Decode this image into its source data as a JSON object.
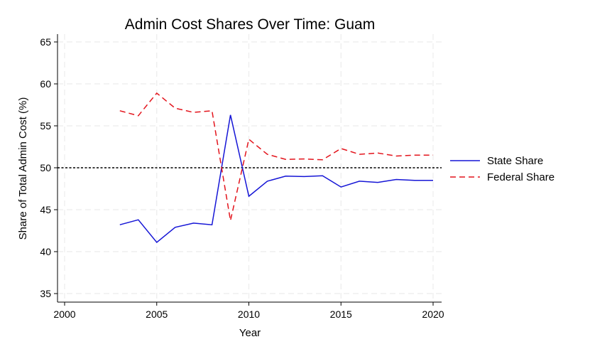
{
  "chart_data": {
    "type": "line",
    "title": "Admin Cost Shares Over Time: Guam",
    "xlabel": "Year",
    "ylabel": "Share of Total Admin Cost (%)",
    "xlim": [
      2000,
      2020
    ],
    "ylim": [
      35,
      65
    ],
    "xticks": [
      2000,
      2005,
      2010,
      2015,
      2020
    ],
    "yticks": [
      35,
      40,
      45,
      50,
      55,
      60,
      65
    ],
    "grid": true,
    "legend_position": "right",
    "reference_line": {
      "y": 50,
      "style": "dotted",
      "color": "#000000"
    },
    "series": [
      {
        "name": "State Share",
        "color": "#1515d6",
        "style": "solid",
        "x": [
          2003,
          2004,
          2005,
          2006,
          2007,
          2008,
          2009,
          2010,
          2011,
          2012,
          2013,
          2014,
          2015,
          2016,
          2017,
          2018,
          2019,
          2020
        ],
        "y": [
          43.2,
          43.8,
          41.1,
          42.9,
          43.4,
          43.2,
          56.3,
          46.6,
          48.4,
          49.0,
          48.95,
          49.05,
          47.7,
          48.4,
          48.25,
          48.6,
          48.5,
          48.5
        ]
      },
      {
        "name": "Federal Share",
        "color": "#e3141c",
        "style": "dashed",
        "x": [
          2003,
          2004,
          2005,
          2006,
          2007,
          2008,
          2009,
          2010,
          2011,
          2012,
          2013,
          2014,
          2015,
          2016,
          2017,
          2018,
          2019,
          2020
        ],
        "y": [
          56.8,
          56.2,
          58.9,
          57.1,
          56.6,
          56.8,
          43.7,
          53.4,
          51.6,
          51.0,
          51.05,
          50.95,
          52.3,
          51.6,
          51.75,
          51.4,
          51.5,
          51.5
        ]
      }
    ]
  }
}
